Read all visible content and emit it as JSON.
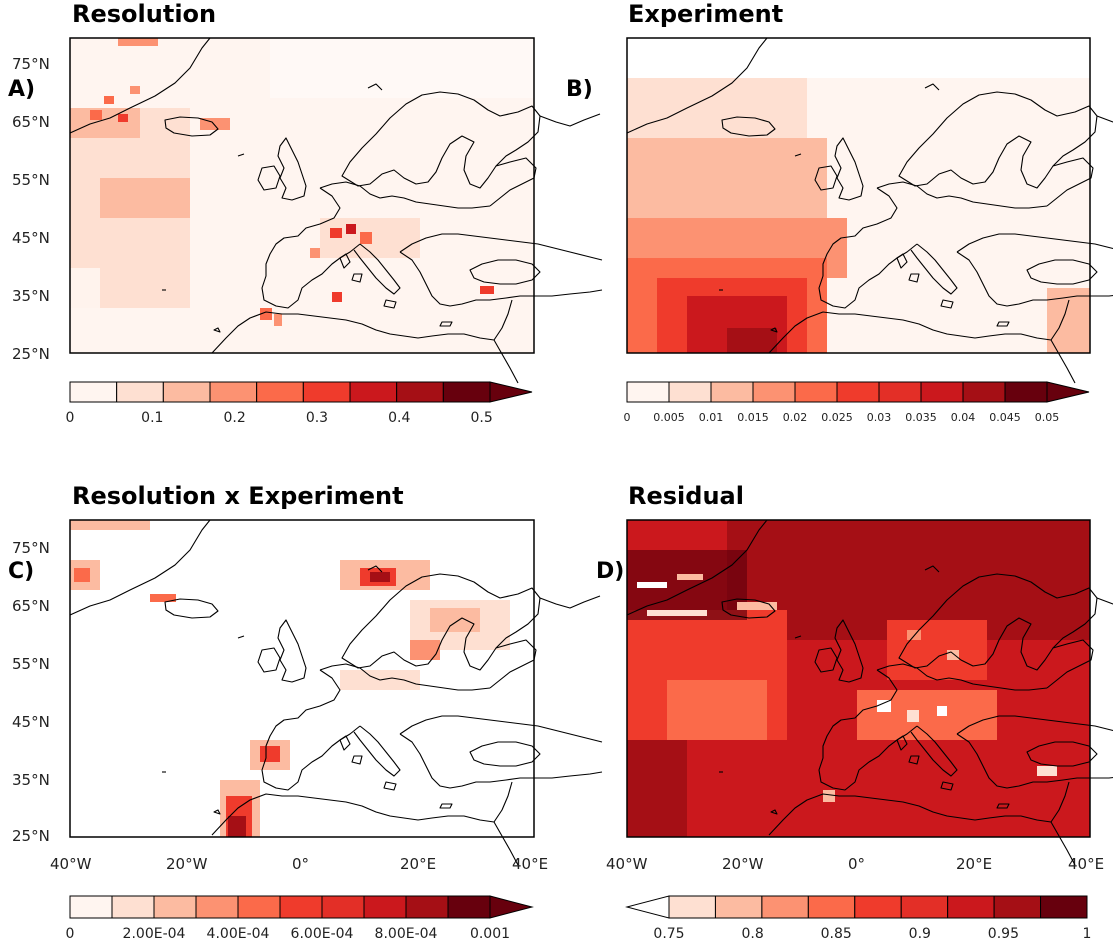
{
  "axes": {
    "lat_ticks": [
      "75°N",
      "65°N",
      "55°N",
      "45°N",
      "35°N",
      "25°N"
    ],
    "lon_ticks": [
      "40°W",
      "20°W",
      "0°",
      "20°E",
      "40°E"
    ]
  },
  "panels": [
    {
      "label": "A)",
      "title": "Resolution",
      "colorbar": {
        "colors": [
          "#fff5f0",
          "#fee0d2",
          "#fcbba1",
          "#fc9272",
          "#fb6a4a",
          "#ef3b2c",
          "#cb181d",
          "#a50f15",
          "#67000d"
        ],
        "labels": [
          "0",
          "0.1",
          "0.2",
          "0.3",
          "0.4",
          "0.5"
        ],
        "arrow_right": true,
        "arrow_left": false
      }
    },
    {
      "label": "B)",
      "title": "Experiment",
      "colorbar": {
        "colors": [
          "#fff5f0",
          "#fee0d2",
          "#fcbba1",
          "#fc9272",
          "#fb6a4a",
          "#ef3b2c",
          "#e32f27",
          "#cb181d",
          "#a50f15",
          "#67000d"
        ],
        "labels": [
          "0",
          "0.005",
          "0.01",
          "0.015",
          "0.02",
          "0.025",
          "0.03",
          "0.035",
          "0.04",
          "0.045",
          "0.05"
        ],
        "arrow_right": true,
        "arrow_left": false
      }
    },
    {
      "label": "C)",
      "title": "Resolution x Experiment",
      "colorbar": {
        "colors": [
          "#fff5f0",
          "#fee0d2",
          "#fcbba1",
          "#fc9272",
          "#fb6a4a",
          "#ef3b2c",
          "#e32f27",
          "#cb181d",
          "#a50f15",
          "#67000d"
        ],
        "labels": [
          "0",
          "2.00E-04",
          "4.00E-04",
          "6.00E-04",
          "8.00E-04",
          "0.001"
        ],
        "arrow_right": true,
        "arrow_left": false
      }
    },
    {
      "label": "D)",
      "title": "Residual",
      "colorbar": {
        "colors": [
          "#fee0d2",
          "#fcbba1",
          "#fc9272",
          "#fb6a4a",
          "#ef3b2c",
          "#e32f27",
          "#cb181d",
          "#a50f15",
          "#67000d"
        ],
        "labels": [
          "0.75",
          "0.8",
          "0.85",
          "0.9",
          "0.95",
          "1"
        ],
        "arrow_right": false,
        "arrow_left": true,
        "arrow_left_color": "#ffffff"
      }
    }
  ],
  "colors": {
    "pale": "#fff5f0",
    "light": "#fee0d2",
    "mid": "#fcbba1",
    "medium": "#fc9272",
    "strong": "#ef3b2c",
    "dark": "#a50f15",
    "darkest": "#67000d",
    "coast": "#000000"
  }
}
